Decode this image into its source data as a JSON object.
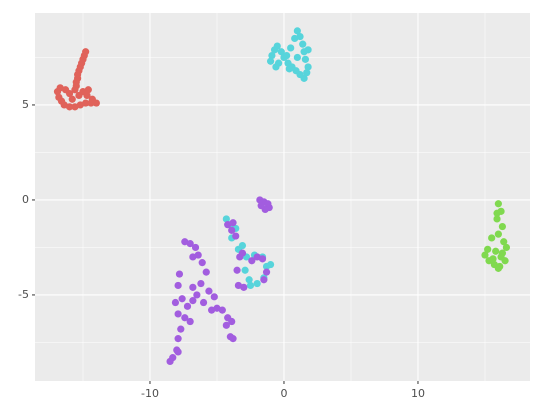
{
  "chart_data": {
    "type": "scatter",
    "xlim": [
      -18.58,
      18.36
    ],
    "ylim": [
      -9.53,
      9.84
    ],
    "xticks": [
      -10,
      0,
      10
    ],
    "yticks": [
      -5,
      0,
      5
    ],
    "x_minor_grid": [
      -15,
      -5,
      5,
      15
    ],
    "y_minor_grid": [
      -7.5,
      -2.5,
      2.5,
      7.5
    ],
    "grid": true,
    "series": [
      {
        "color": "#e0625a",
        "x": [
          -14.8,
          -14.9,
          -15.0,
          -15.1,
          -15.2,
          -15.3,
          -15.4,
          -15.4,
          -15.5,
          -15.5,
          -15.6,
          -16.9,
          -16.7,
          -16.3,
          -16.0,
          -16.8,
          -16.6,
          -16.4,
          -16.0,
          -15.6,
          -15.2,
          -14.8,
          -14.4,
          -14.0,
          -14.3,
          -14.7,
          -15.0,
          -15.3,
          -15.8,
          -14.6
        ],
        "y": [
          7.8,
          7.6,
          7.4,
          7.2,
          7.0,
          6.8,
          6.6,
          6.4,
          6.2,
          6.0,
          5.8,
          5.7,
          5.9,
          5.8,
          5.6,
          5.4,
          5.2,
          5.0,
          4.9,
          4.9,
          5.0,
          5.1,
          5.1,
          5.1,
          5.3,
          5.5,
          5.7,
          5.5,
          5.3,
          5.8
        ]
      },
      {
        "color": "#80d94f",
        "x": [
          16.0,
          16.2,
          15.9,
          16.3,
          16.0,
          16.4,
          15.5,
          15.2,
          15.0,
          15.3,
          15.7,
          16.1,
          16.5,
          16.3,
          15.8,
          16.2,
          15.6,
          16.0,
          16.6,
          15.9
        ],
        "y": [
          -0.2,
          -0.6,
          -1.0,
          -1.4,
          -1.8,
          -2.2,
          -2.0,
          -2.6,
          -2.9,
          -3.2,
          -3.4,
          -3.5,
          -3.2,
          -2.8,
          -2.7,
          -3.0,
          -3.1,
          -3.6,
          -2.5,
          -0.7
        ]
      },
      {
        "color": "#57d4db",
        "x": [
          -1.0,
          -0.9,
          -0.7,
          -0.5,
          -0.2,
          0.0,
          0.3,
          0.6,
          0.9,
          1.2,
          1.5,
          1.7,
          1.8,
          1.6,
          1.5,
          1.8,
          1.4,
          1.2,
          1.0,
          0.8,
          0.5,
          0.2,
          -0.4,
          0.4,
          1.0,
          -0.6,
          -4.3,
          -4.0,
          -3.6,
          -3.9,
          -3.4,
          -2.8,
          -2.2,
          -1.6,
          -1.3,
          -1.5,
          -2.0,
          -2.6,
          -2.9,
          -3.1,
          -2.5,
          -1.0
        ],
        "y": [
          7.3,
          7.6,
          7.9,
          8.1,
          7.8,
          7.5,
          7.2,
          7.0,
          6.8,
          6.6,
          6.4,
          6.7,
          7.0,
          7.4,
          7.8,
          7.9,
          8.2,
          8.6,
          8.9,
          8.5,
          8.0,
          7.6,
          7.2,
          6.9,
          7.5,
          7.0,
          -1.0,
          -1.3,
          -1.5,
          -2.0,
          -2.6,
          -3.0,
          -2.9,
          -3.0,
          -3.5,
          -4.1,
          -4.4,
          -4.2,
          -3.7,
          -2.4,
          -4.5,
          -3.4
        ]
      },
      {
        "color": "#a25ddf",
        "x": [
          -1.8,
          -1.5,
          -1.2,
          -1.1,
          -1.4,
          -1.7,
          -4.2,
          -3.9,
          -3.6,
          -3.8,
          -3.3,
          -3.1,
          -2.4,
          -2.0,
          -1.6,
          -1.3,
          -1.5,
          -3.5,
          -3.0,
          -3.4,
          -7.4,
          -7.0,
          -6.6,
          -6.4,
          -6.1,
          -5.8,
          -6.8,
          -7.8,
          -7.9,
          -7.6,
          -8.1,
          -7.2,
          -6.8,
          -7.9,
          -7.4,
          -7.7,
          -7.9,
          -8.0,
          -8.3,
          -8.5,
          -7.9,
          -6.8,
          -6.5,
          -6.0,
          -5.6,
          -5.2,
          -5.0,
          -4.6,
          -4.2,
          -3.9,
          -4.3,
          -4.0,
          -3.8,
          -5.4,
          -6.2,
          -7.0
        ],
        "y": [
          0.0,
          -0.1,
          -0.2,
          -0.4,
          -0.5,
          -0.3,
          -1.3,
          -1.6,
          -1.9,
          -1.2,
          -3.0,
          -2.8,
          -3.2,
          -3.0,
          -3.1,
          -3.8,
          -4.2,
          -3.7,
          -4.6,
          -4.5,
          -2.2,
          -2.3,
          -2.5,
          -2.9,
          -3.3,
          -3.8,
          -3.0,
          -3.9,
          -4.5,
          -5.2,
          -5.4,
          -5.6,
          -5.3,
          -6.0,
          -6.2,
          -6.8,
          -7.3,
          -7.9,
          -8.3,
          -8.5,
          -8.0,
          -4.6,
          -5.0,
          -5.4,
          -4.8,
          -5.1,
          -5.7,
          -5.8,
          -6.2,
          -6.4,
          -6.6,
          -7.2,
          -7.3,
          -5.8,
          -4.4,
          -6.4
        ]
      }
    ]
  }
}
